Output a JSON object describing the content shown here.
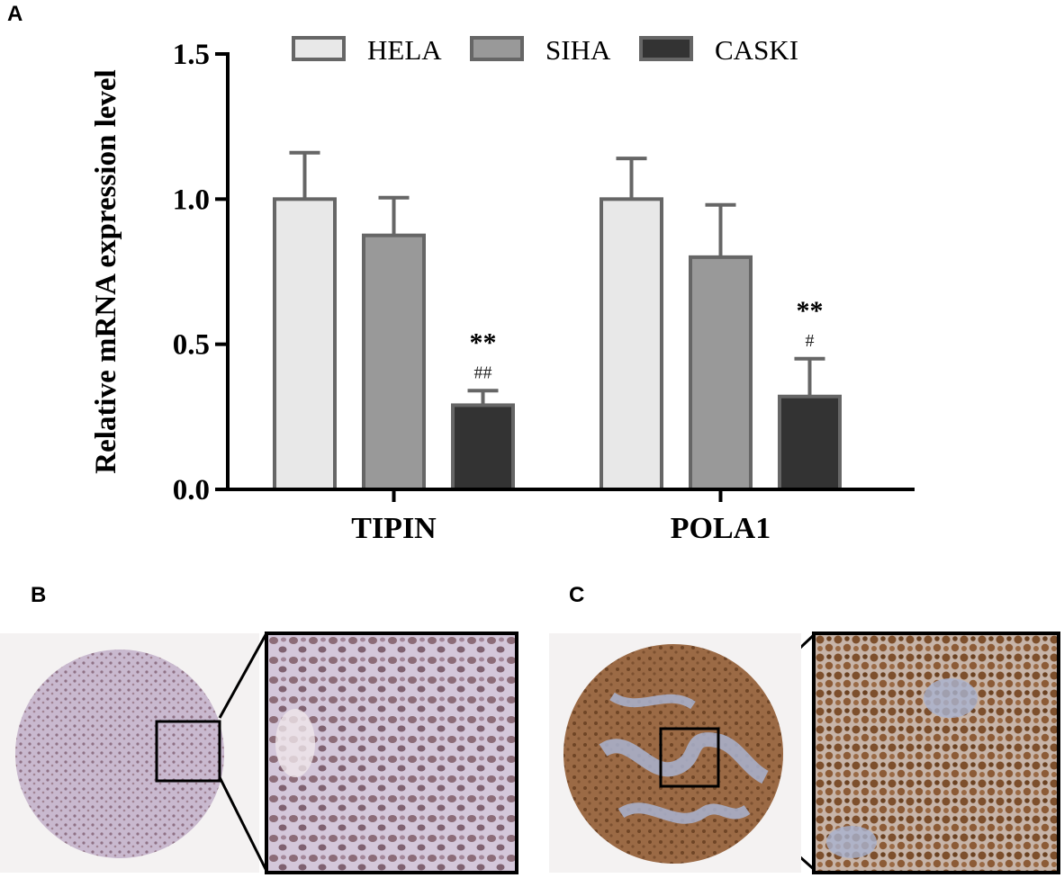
{
  "panels": {
    "a": "A",
    "b": "B",
    "c": "C"
  },
  "chart_data": {
    "type": "bar",
    "categories": [
      "TIPIN",
      "POLA1"
    ],
    "series": [
      {
        "name": "HELA",
        "values": [
          1.0,
          1.0
        ],
        "errors": [
          0.16,
          0.14
        ],
        "color": "#e8e8e8"
      },
      {
        "name": "SIHA",
        "values": [
          0.875,
          0.8
        ],
        "errors": [
          0.13,
          0.18
        ],
        "color": "#999999"
      },
      {
        "name": "CASKI",
        "values": [
          0.29,
          0.32
        ],
        "errors": [
          0.05,
          0.13
        ],
        "color": "#333333"
      }
    ],
    "significance": [
      {
        "category": "TIPIN",
        "series": "CASKI",
        "top": "**",
        "bottom": "##"
      },
      {
        "category": "POLA1",
        "series": "CASKI",
        "top": "**",
        "bottom": "#"
      }
    ],
    "ylabel": "Relative mRNA expression level",
    "xlabel": "",
    "ylim": [
      0,
      1.5
    ],
    "yticks": [
      "0.0",
      "0.5",
      "1.0",
      "1.5"
    ],
    "legend_position": "top",
    "grid": false
  },
  "images": {
    "b_whole": "tissue-core-weak-staining",
    "b_zoom": "zoom-weak-nuclear-staining",
    "c_whole": "tissue-core-strong-staining",
    "c_zoom": "zoom-strong-nuclear-staining",
    "colors": {
      "weak_bg": "#cdbfd5",
      "weak_nucleus": "#8a6a78",
      "strong_bg": "#a9b3d0",
      "strong_nucleus": "#8a5a38"
    }
  }
}
